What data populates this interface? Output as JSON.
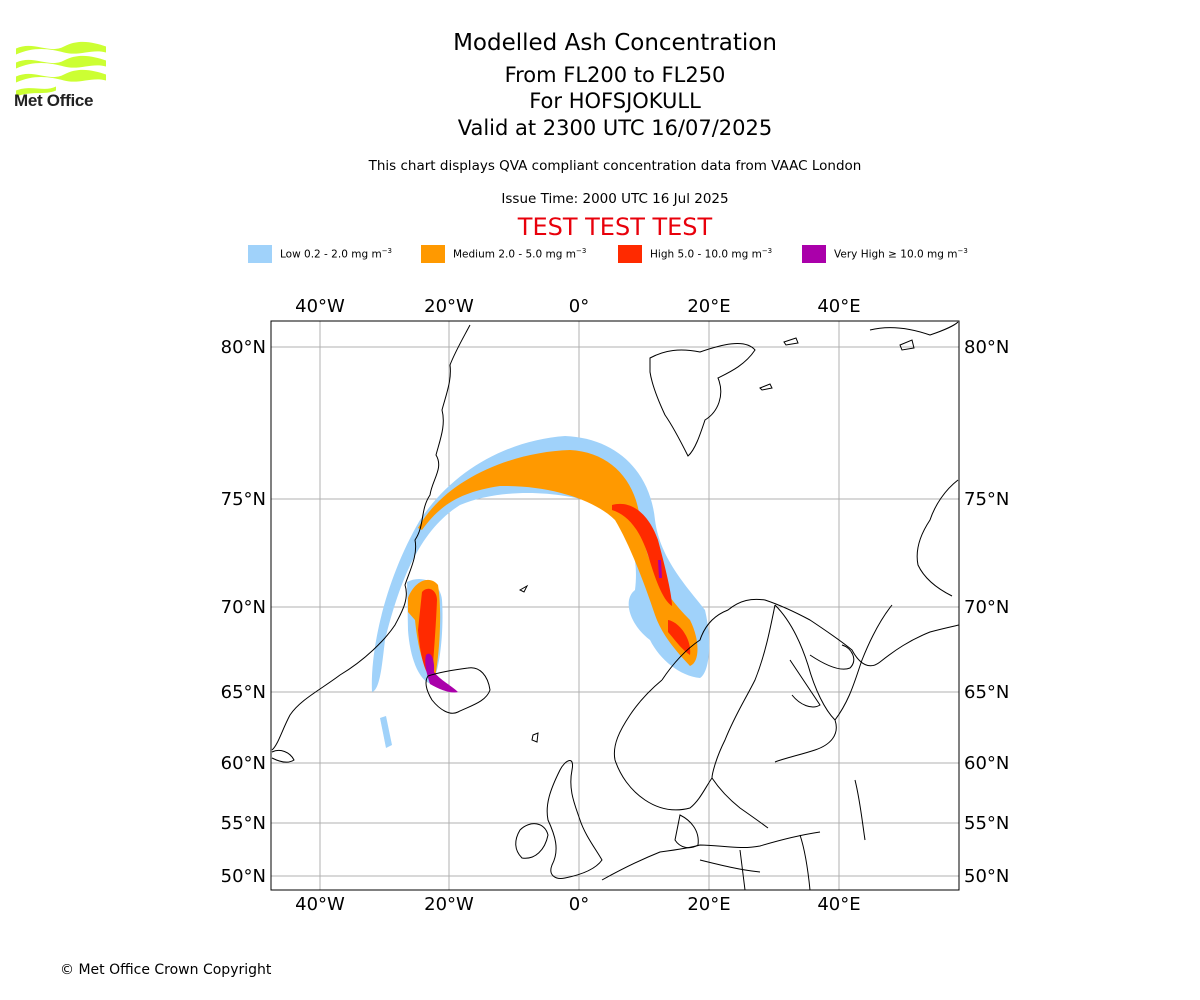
{
  "logo": {
    "text": "Met Office",
    "icon": "met-office-wave-logo",
    "color": "#ccff33"
  },
  "title": {
    "line1": "Modelled Ash Concentration",
    "line2": "From FL200 to FL250",
    "line3": "For HOFSJOKULL",
    "line4": "Valid at 2300 UTC 16/07/2025"
  },
  "disclaimer": "This chart displays QVA compliant concentration data from VAAC London",
  "issue_time": "Issue Time: 2000 UTC 16 Jul 2025",
  "test_banner": "TEST TEST TEST",
  "legend": [
    {
      "label": "Low 0.2 - 2.0 mg m",
      "color": "#a0d2fa"
    },
    {
      "label": "Medium 2.0 - 5.0 mg m",
      "color": "#ff9900"
    },
    {
      "label": "High 5.0 - 10.0 mg m",
      "color": "#ff2a00"
    },
    {
      "label": "Very High ≥ 10.0 mg m",
      "color": "#aa00aa"
    }
  ],
  "legend_unit_exponent": "−3",
  "axes": {
    "lon_labels": [
      "40°W",
      "20°W",
      "0°",
      "20°E",
      "40°E"
    ],
    "lat_labels": [
      "80°N",
      "75°N",
      "70°N",
      "65°N",
      "60°N",
      "55°N",
      "50°N"
    ],
    "grid": true
  },
  "copyright": "© Met Office Crown Copyright"
}
